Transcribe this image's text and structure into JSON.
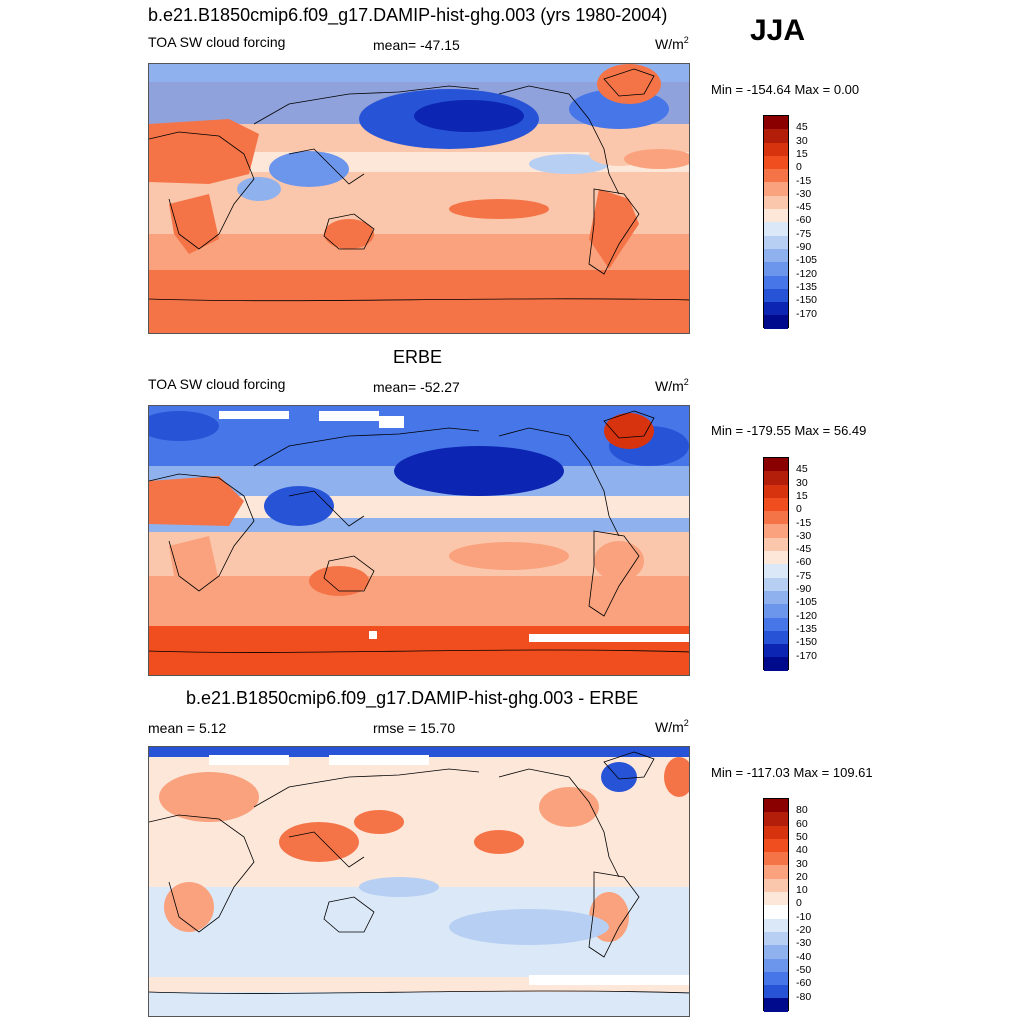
{
  "season": "JJA",
  "panels": [
    {
      "title": "b.e21.B1850cmip6.f09_g17.DAMIP-hist-ghg.003 (yrs 1980-2004)",
      "left_label": "TOA SW cloud forcing",
      "stat_label": "mean= -47.15",
      "units": "W/m",
      "units_sup": "2",
      "minmax": "Min = -154.64 Max =    0.00",
      "colorbar": {
        "labels": [
          "45",
          "30",
          "15",
          "0",
          "-15",
          "-30",
          "-45",
          "-60",
          "-75",
          "-90",
          "-105",
          "-120",
          "-135",
          "-150",
          "-170"
        ],
        "colors": [
          "#8a0000",
          "#b21e0a",
          "#d8330f",
          "#f04e1e",
          "#f47447",
          "#f9a27d",
          "#fbc7ac",
          "#fde7d9",
          "#dbe8f8",
          "#b6cff3",
          "#8fb2ee",
          "#6c95ec",
          "#4676e8",
          "#2753d7",
          "#0c25b2",
          "#000a8c"
        ]
      }
    },
    {
      "title": "ERBE",
      "left_label": "TOA SW cloud forcing",
      "stat_label": "mean= -52.27",
      "units": "W/m",
      "units_sup": "2",
      "minmax": "Min = -179.55 Max =  56.49",
      "colorbar": {
        "labels": [
          "45",
          "30",
          "15",
          "0",
          "-15",
          "-30",
          "-45",
          "-60",
          "-75",
          "-90",
          "-105",
          "-120",
          "-135",
          "-150",
          "-170"
        ],
        "colors": [
          "#8a0000",
          "#b21e0a",
          "#d8330f",
          "#f04e1e",
          "#f47447",
          "#f9a27d",
          "#fbc7ac",
          "#fde7d9",
          "#dbe8f8",
          "#b6cff3",
          "#8fb2ee",
          "#6c95ec",
          "#4676e8",
          "#2753d7",
          "#0c25b2",
          "#000a8c"
        ]
      }
    },
    {
      "title": "b.e21.B1850cmip6.f09_g17.DAMIP-hist-ghg.003 - ERBE",
      "left_label": "mean =   5.12",
      "stat_label": "rmse =  15.70",
      "units": "W/m",
      "units_sup": "2",
      "minmax": "Min = -117.03 Max = 109.61",
      "colorbar": {
        "labels": [
          "80",
          "60",
          "50",
          "40",
          "30",
          "20",
          "10",
          "0",
          "-10",
          "-20",
          "-30",
          "-40",
          "-50",
          "-60",
          "-80"
        ],
        "colors": [
          "#8a0000",
          "#b21e0a",
          "#d8330f",
          "#f04e1e",
          "#f47447",
          "#f9a27d",
          "#fbc7ac",
          "#fde7d9",
          "#ffffff",
          "#dbe8f8",
          "#b6cff3",
          "#8fb2ee",
          "#6c95ec",
          "#4676e8",
          "#2753d7",
          "#000a8c"
        ]
      }
    }
  ]
}
